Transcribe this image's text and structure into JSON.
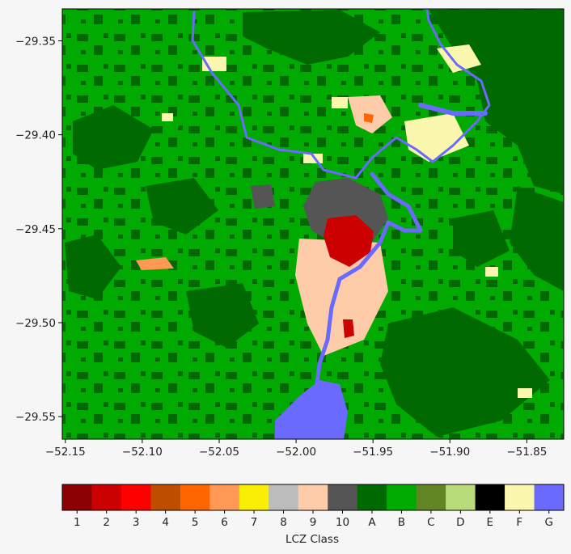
{
  "map": {
    "x_ticks": [
      "−52.15",
      "−52.10",
      "−52.05",
      "−52.00",
      "−51.95",
      "−51.90",
      "−51.85"
    ],
    "x_tick_values": [
      -52.15,
      -52.1,
      -52.05,
      -52.0,
      -51.95,
      -51.9,
      -51.85
    ],
    "y_ticks": [
      "−29.35",
      "−29.40",
      "−29.45",
      "−29.50",
      "−29.55"
    ],
    "y_tick_values": [
      -29.35,
      -29.4,
      -29.45,
      -29.5,
      -29.55
    ],
    "x_range": [
      -52.152,
      -51.826
    ],
    "y_range": [
      -29.562,
      -29.333
    ],
    "dominant_classes": [
      "B",
      "A",
      "G",
      "F",
      "10",
      "2",
      "9"
    ]
  },
  "colorbar": {
    "label": "LCZ Class",
    "classes": [
      {
        "label": "1",
        "color": "#8b0000"
      },
      {
        "label": "2",
        "color": "#cc0000"
      },
      {
        "label": "3",
        "color": "#ff0000"
      },
      {
        "label": "4",
        "color": "#bf4d00"
      },
      {
        "label": "5",
        "color": "#ff6600"
      },
      {
        "label": "6",
        "color": "#ff9955"
      },
      {
        "label": "7",
        "color": "#faee05"
      },
      {
        "label": "8",
        "color": "#bcbcbc"
      },
      {
        "label": "9",
        "color": "#ffccaa"
      },
      {
        "label": "10",
        "color": "#555555"
      },
      {
        "label": "A",
        "color": "#006a00"
      },
      {
        "label": "B",
        "color": "#00aa00"
      },
      {
        "label": "C",
        "color": "#648525"
      },
      {
        "label": "D",
        "color": "#b9db79"
      },
      {
        "label": "E",
        "color": "#000000"
      },
      {
        "label": "F",
        "color": "#fbf7ae"
      },
      {
        "label": "G",
        "color": "#6a6aff"
      }
    ]
  }
}
